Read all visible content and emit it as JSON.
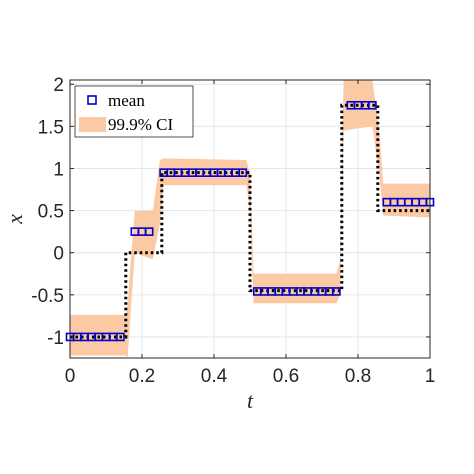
{
  "chart_data": {
    "type": "line",
    "xlabel": "t",
    "ylabel": "x",
    "xlim": [
      0,
      1
    ],
    "ylim": [
      -1.25,
      2.05
    ],
    "grid": true,
    "legend_position": "top-left",
    "x_ticks": [
      0,
      0.2,
      0.4,
      0.6,
      0.8,
      1
    ],
    "x_tick_labels": [
      "0",
      "0.2",
      "0.4",
      "0.6",
      "0.8",
      "1"
    ],
    "y_ticks": [
      -1,
      -0.5,
      0,
      0.5,
      1,
      1.5,
      2
    ],
    "y_tick_labels": [
      "-1",
      "-0.5",
      "0",
      "0.5",
      "1",
      "1.5",
      "2"
    ],
    "legend": [
      {
        "name": "mean",
        "kind": "marker"
      },
      {
        "name": "99.9% CI",
        "kind": "band"
      }
    ],
    "true_signal": {
      "style": "dotted",
      "color": "#000000",
      "x": [
        0,
        0.155,
        0.155,
        0.255,
        0.255,
        0.5,
        0.5,
        0.755,
        0.755,
        0.855,
        0.855,
        1.0
      ],
      "y": [
        -1,
        -1,
        0,
        0,
        0.95,
        0.95,
        -0.45,
        -0.45,
        1.75,
        1.75,
        0.5,
        0.5
      ]
    },
    "mean": {
      "color": "#0000cc",
      "marker": "square",
      "x": [
        0,
        0.02,
        0.04,
        0.06,
        0.08,
        0.1,
        0.12,
        0.14,
        0.18,
        0.2,
        0.22,
        0.26,
        0.28,
        0.3,
        0.32,
        0.34,
        0.36,
        0.38,
        0.4,
        0.42,
        0.44,
        0.46,
        0.48,
        0.52,
        0.54,
        0.56,
        0.58,
        0.6,
        0.62,
        0.64,
        0.66,
        0.68,
        0.7,
        0.72,
        0.74,
        0.78,
        0.8,
        0.82,
        0.84,
        0.88,
        0.9,
        0.92,
        0.94,
        0.96,
        0.98,
        1.0
      ],
      "y": [
        -1,
        -1,
        -1,
        -1,
        -1,
        -1,
        -1,
        -1,
        0.25,
        0.25,
        0.25,
        0.95,
        0.95,
        0.95,
        0.95,
        0.95,
        0.95,
        0.95,
        0.95,
        0.95,
        0.95,
        0.95,
        0.95,
        -0.46,
        -0.46,
        -0.46,
        -0.46,
        -0.46,
        -0.46,
        -0.46,
        -0.46,
        -0.46,
        -0.46,
        -0.46,
        -0.46,
        1.75,
        1.75,
        1.75,
        1.75,
        0.6,
        0.6,
        0.6,
        0.6,
        0.6,
        0.6,
        0.6
      ]
    },
    "ci": {
      "color": "#fbc9a4",
      "x": [
        0,
        0.155,
        0.16,
        0.18,
        0.23,
        0.25,
        0.26,
        0.49,
        0.5,
        0.51,
        0.74,
        0.75,
        0.76,
        0.84,
        0.86,
        0.87,
        1.0
      ],
      "upper": [
        -0.74,
        -0.74,
        -0.6,
        0.5,
        0.5,
        1.1,
        1.12,
        1.1,
        0.95,
        -0.25,
        -0.25,
        -0.1,
        2.05,
        2.1,
        1.4,
        0.82,
        0.82
      ],
      "lower": [
        -1.22,
        -1.22,
        -1.25,
        0.0,
        -0.08,
        0.35,
        0.8,
        0.8,
        0.5,
        -0.6,
        -0.6,
        -0.5,
        1.45,
        1.5,
        0.9,
        0.44,
        0.42
      ]
    }
  }
}
